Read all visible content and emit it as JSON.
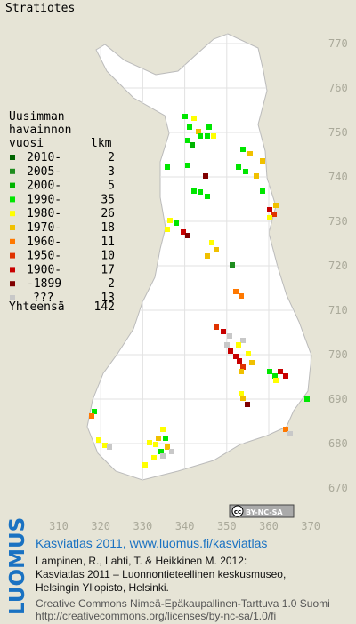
{
  "title": "Stratiotes",
  "legend": {
    "header": [
      "Uusimman",
      "havainnon",
      "vuosi"
    ],
    "count_header": "lkm",
    "rows": [
      {
        "label": "2010-",
        "count": 2,
        "color": "#006400"
      },
      {
        "label": "2005-",
        "count": 3,
        "color": "#1e8c1e"
      },
      {
        "label": "2000-",
        "count": 5,
        "color": "#00b400"
      },
      {
        "label": "1990-",
        "count": 35,
        "color": "#00e600"
      },
      {
        "label": "1980-",
        "count": 26,
        "color": "#ffff00"
      },
      {
        "label": "1970-",
        "count": 18,
        "color": "#f0c000"
      },
      {
        "label": "1960-",
        "count": 11,
        "color": "#ff7800"
      },
      {
        "label": "1950-",
        "count": 10,
        "color": "#e03200"
      },
      {
        "label": "1900-",
        "count": 17,
        "color": "#c80000"
      },
      {
        "label": "-1899",
        "count": 2,
        "color": "#800000"
      },
      {
        "label": "???",
        "count": 13,
        "color": "#c8c8c8"
      }
    ],
    "total_label": "Yhteensä",
    "total": 142
  },
  "y_ticks": [
    770,
    760,
    750,
    740,
    730,
    720,
    710,
    700,
    690,
    680,
    670
  ],
  "x_ticks": [
    310,
    320,
    330,
    340,
    350,
    360,
    370
  ],
  "badge": {
    "cc": "cc",
    "license": "BY-NC-SA"
  },
  "footer": {
    "logo": "LUOMUS",
    "link": "Kasviatlas 2011, www.luomus.fi/kasviatlas",
    "citation": [
      "Lampinen, R., Lahti, T. & Heikkinen M. 2012:",
      "Kasviatlas 2011 – Luonnontieteellinen keskusmuseo,",
      "Helsingin Yliopisto, Helsinki."
    ],
    "license": [
      "Creative Commons Nimeä-Epäkaupallinen-Tarttuva 1.0 Suomi",
      "http://creativecommons.org/licenses/by-nc-sa/1.0/fi"
    ]
  }
}
